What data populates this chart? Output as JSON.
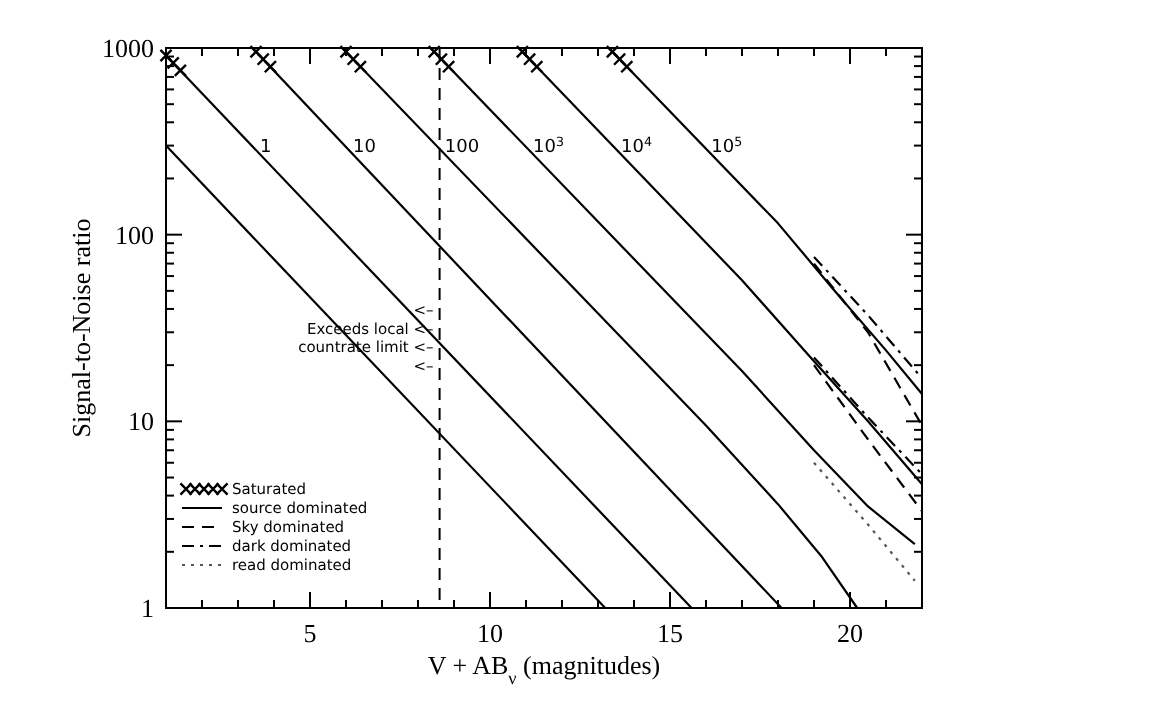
{
  "chart_data": {
    "type": "line",
    "xlabel": "V + AB$_{ν}$ (magnitudes)",
    "ylabel": "Signal-to-Noise ratio",
    "log": "y",
    "xlim": [
      1,
      22
    ],
    "xticks": [
      5,
      10,
      15,
      20
    ],
    "ylim": [
      1,
      1000
    ],
    "yticks": [
      1,
      10,
      100,
      1000
    ],
    "legend": "bottom left",
    "grid": false,
    "series": [
      {
        "name": "Saturated",
        "type": "scatter",
        "marker": "cross",
        "color": "#000000",
        "x": [
          1.0,
          1.2,
          1.4,
          3.5,
          3.7,
          3.9,
          6.0,
          6.2,
          6.4,
          8.45,
          8.65,
          8.85,
          10.9,
          11.1,
          11.3,
          13.4,
          13.6,
          13.8
        ],
        "values": [
          912,
          832,
          759,
          955,
          871,
          794,
          955,
          871,
          794,
          955,
          871,
          794,
          955,
          871,
          794,
          955,
          871,
          794
        ]
      },
      {
        "name": "source dominated",
        "line_style": "solid",
        "color": "#000000",
        "x": [
          1,
          13.2
        ],
        "values": [
          300,
          1
        ]
      },
      {
        "name": "1",
        "line_style": "solid",
        "color": "#000000",
        "x": [
          1,
          15.6
        ],
        "values": [
          912,
          1
        ]
      },
      {
        "name": "10",
        "line_style": "solid",
        "color": "#000000",
        "x": [
          3.4,
          18.1
        ],
        "values": [
          1000,
          1
        ]
      },
      {
        "name": "100",
        "line_style": "solid",
        "color": "#000000",
        "x": [
          5.9,
          16,
          18,
          19.2,
          20.2
        ],
        "values": [
          1000,
          9.5,
          3.6,
          1.9,
          1
        ]
      },
      {
        "name": "10$^{3}$",
        "line_style": "solid",
        "color": "#000000",
        "x": [
          8.35,
          17,
          19,
          20.5,
          21.8
        ],
        "values": [
          1000,
          18.6,
          7,
          3.5,
          2.2
        ]
      },
      {
        "name": "10$^{4}$",
        "line_style": "solid",
        "color": "#000000",
        "x": [
          10.8,
          17,
          19,
          20.5,
          22
        ],
        "values": [
          1000,
          57,
          21,
          10,
          4.6
        ]
      },
      {
        "name": "10$^{5}$",
        "line_style": "solid",
        "color": "#000000",
        "x": [
          13.3,
          18,
          19.5,
          21,
          22
        ],
        "values": [
          1000,
          115,
          52,
          24,
          14
        ]
      },
      {
        "name": "Sky dominated",
        "line_style": "dashed",
        "color": "#000000",
        "x": [
          19,
          20.5,
          22
        ],
        "values": [
          70,
          30,
          9.5
        ]
      },
      {
        "line_style": "dashed",
        "color": "#000000",
        "x": [
          19,
          20.5,
          22
        ],
        "values": [
          20,
          8,
          3.3
        ]
      },
      {
        "name": "dark dominated",
        "line_style": "dashdot",
        "color": "#000000",
        "x": [
          19,
          20.5,
          22
        ],
        "values": [
          76,
          37,
          17
        ]
      },
      {
        "line_style": "dashdot",
        "color": "#000000",
        "x": [
          19,
          20.5,
          22
        ],
        "values": [
          22,
          10.5,
          5.2
        ]
      },
      {
        "name": "read dominated",
        "line_style": "dotted",
        "color": "#555555",
        "x": [
          19,
          20.5,
          21.8
        ],
        "values": [
          6,
          2.8,
          1.4
        ]
      }
    ],
    "ref_lines": [
      {
        "axis": "x",
        "value": 8.6,
        "line_style": "dashed"
      }
    ],
    "annotations": [
      "<–",
      "Exceeds local <–",
      "countrate limit <–",
      "<–"
    ]
  }
}
